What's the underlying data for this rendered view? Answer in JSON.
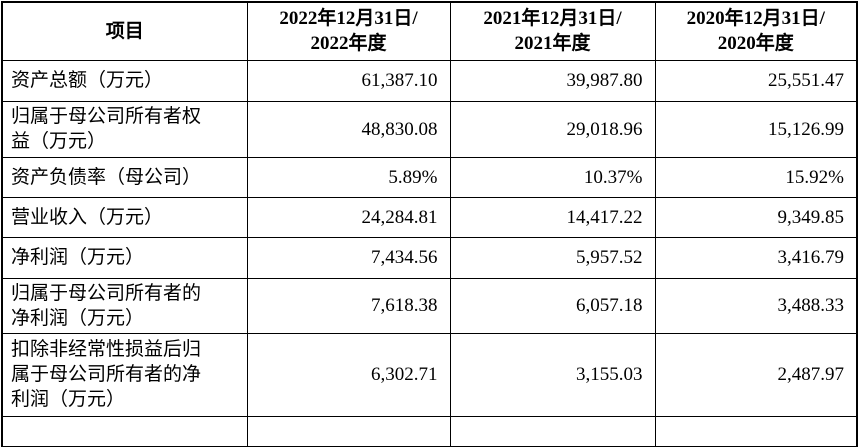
{
  "table": {
    "headers": [
      [
        "项目"
      ],
      [
        "2022年12月31日/",
        "2022年度"
      ],
      [
        "2021年12月31日/",
        "2021年度"
      ],
      [
        "2020年12月31日/",
        "2020年度"
      ]
    ],
    "rows": [
      {
        "label": [
          "资产总额（万元）"
        ],
        "values": [
          "61,387.10",
          "39,987.80",
          "25,551.47"
        ]
      },
      {
        "label": [
          "归属于母公司所有者权",
          "益（万元）"
        ],
        "values": [
          "48,830.08",
          "29,018.96",
          "15,126.99"
        ]
      },
      {
        "label": [
          "资产负债率（母公司）"
        ],
        "values": [
          "5.89%",
          "10.37%",
          "15.92%"
        ]
      },
      {
        "label": [
          "营业收入（万元）"
        ],
        "values": [
          "24,284.81",
          "14,417.22",
          "9,349.85"
        ]
      },
      {
        "label": [
          "净利润（万元）"
        ],
        "values": [
          "7,434.56",
          "5,957.52",
          "3,416.79"
        ]
      },
      {
        "label": [
          "归属于母公司所有者的",
          "净利润（万元）"
        ],
        "values": [
          "7,618.38",
          "6,057.18",
          "3,488.33"
        ]
      },
      {
        "label": [
          "扣除非经常性损益后归",
          "属于母公司所有者的净",
          "利润（万元）"
        ],
        "values": [
          "6,302.71",
          "3,155.03",
          "2,487.97"
        ]
      }
    ]
  }
}
